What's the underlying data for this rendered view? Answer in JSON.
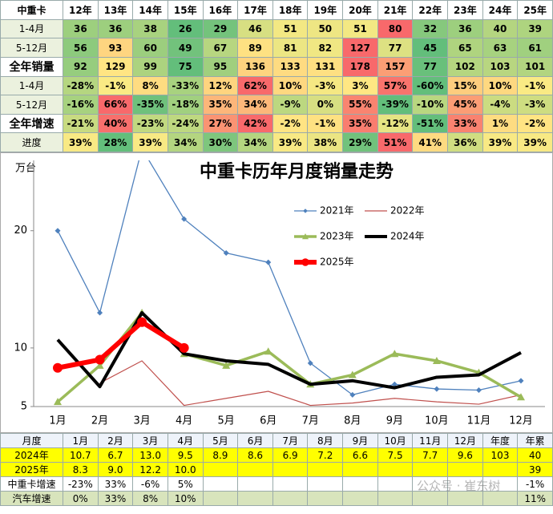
{
  "top_table": {
    "header": [
      "中重卡",
      "12年",
      "13年",
      "14年",
      "15年",
      "16年",
      "17年",
      "18年",
      "19年",
      "20年",
      "21年",
      "22年",
      "23年",
      "24年",
      "25年"
    ],
    "rows": [
      [
        "1-4月",
        "36",
        "36",
        "38",
        "26",
        "29",
        "46",
        "51",
        "50",
        "51",
        "80",
        "32",
        "36",
        "40",
        "39"
      ],
      [
        "5-12月",
        "56",
        "93",
        "60",
        "49",
        "67",
        "89",
        "81",
        "82",
        "127",
        "77",
        "45",
        "65",
        "63",
        "61"
      ],
      [
        "全年销量",
        "92",
        "129",
        "99",
        "75",
        "95",
        "136",
        "133",
        "131",
        "178",
        "157",
        "77",
        "102",
        "103",
        "101"
      ],
      [
        "1-4月",
        "-28%",
        "-1%",
        "8%",
        "-33%",
        "12%",
        "62%",
        "10%",
        "-3%",
        "3%",
        "57%",
        "-60%",
        "15%",
        "10%",
        "-1%"
      ],
      [
        "5-12月",
        "-16%",
        "66%",
        "-35%",
        "-18%",
        "35%",
        "34%",
        "-9%",
        "0%",
        "55%",
        "-39%",
        "-10%",
        "45%",
        "-4%",
        "-3%"
      ],
      [
        "全年增速",
        "-21%",
        "40%",
        "-23%",
        "-24%",
        "27%",
        "42%",
        "-2%",
        "-1%",
        "35%",
        "-12%",
        "-51%",
        "33%",
        "1%",
        "-2%"
      ],
      [
        "进度",
        "39%",
        "28%",
        "39%",
        "34%",
        "30%",
        "34%",
        "39%",
        "38%",
        "29%",
        "51%",
        "41%",
        "36%",
        "39%",
        "39%"
      ]
    ],
    "heatmap": {
      "low": "#63be7b",
      "mid": "#ffeb84",
      "high": "#f8696b"
    }
  },
  "chart_data": {
    "type": "line",
    "title": "中重卡历年月度销量走势",
    "y_label": "万台",
    "categories": [
      "1月",
      "2月",
      "3月",
      "4月",
      "5月",
      "6月",
      "7月",
      "8月",
      "9月",
      "10月",
      "11月",
      "12月"
    ],
    "ylim": [
      5,
      26
    ],
    "yticks": [
      5,
      10,
      20
    ],
    "series": [
      {
        "name": "2021年",
        "color": "#4f81bd",
        "line_width": 1.3,
        "marker": "diamond",
        "values": [
          20.0,
          13.0,
          27.0,
          21.0,
          18.1,
          17.3,
          8.7,
          6.0,
          6.9,
          6.5,
          6.4,
          7.2
        ]
      },
      {
        "name": "2022年",
        "color": "#c0504d",
        "line_width": 1.2,
        "marker": "none",
        "values": [
          null,
          7.0,
          8.9,
          5.1,
          5.7,
          6.3,
          5.1,
          5.3,
          5.7,
          5.4,
          5.2,
          6.0
        ]
      },
      {
        "name": "2023年",
        "color": "#9bbb59",
        "line_width": 3.5,
        "marker": "triangle",
        "values": [
          5.4,
          8.5,
          13.0,
          9.5,
          8.5,
          9.7,
          6.9,
          7.7,
          9.5,
          8.9,
          7.9,
          5.8
        ]
      },
      {
        "name": "2024年",
        "color": "#000000",
        "line_width": 4,
        "marker": "none",
        "values": [
          10.7,
          6.7,
          13.0,
          9.5,
          8.9,
          8.6,
          6.9,
          7.2,
          6.6,
          7.5,
          7.7,
          9.6
        ]
      },
      {
        "name": "2025年",
        "color": "#ff0000",
        "line_width": 6,
        "marker": "circle",
        "values": [
          8.3,
          9.0,
          12.2,
          10.0,
          null,
          null,
          null,
          null,
          null,
          null,
          null,
          null
        ]
      }
    ]
  },
  "bottom_table": {
    "header": [
      "月度",
      "1月",
      "2月",
      "3月",
      "4月",
      "5月",
      "6月",
      "7月",
      "8月",
      "9月",
      "10月",
      "11月",
      "12月",
      "年度",
      "年累"
    ],
    "rows": [
      [
        "2024年",
        "10.7",
        "6.7",
        "13.0",
        "9.5",
        "8.9",
        "8.6",
        "6.9",
        "7.2",
        "6.6",
        "7.5",
        "7.7",
        "9.6",
        "103",
        "40"
      ],
      [
        "2025年",
        "8.3",
        "9.0",
        "12.2",
        "10.0",
        null,
        null,
        null,
        null,
        null,
        null,
        null,
        null,
        null,
        "39"
      ],
      [
        "中重卡增速",
        "-23%",
        "33%",
        "-6%",
        "5%",
        null,
        null,
        null,
        null,
        null,
        null,
        null,
        null,
        null,
        "-1%"
      ],
      [
        "汽车增速",
        "0%",
        "33%",
        "8%",
        "10%",
        null,
        null,
        null,
        null,
        null,
        null,
        null,
        null,
        null,
        "11%"
      ]
    ]
  },
  "watermark": "公众号 · 崔东树"
}
